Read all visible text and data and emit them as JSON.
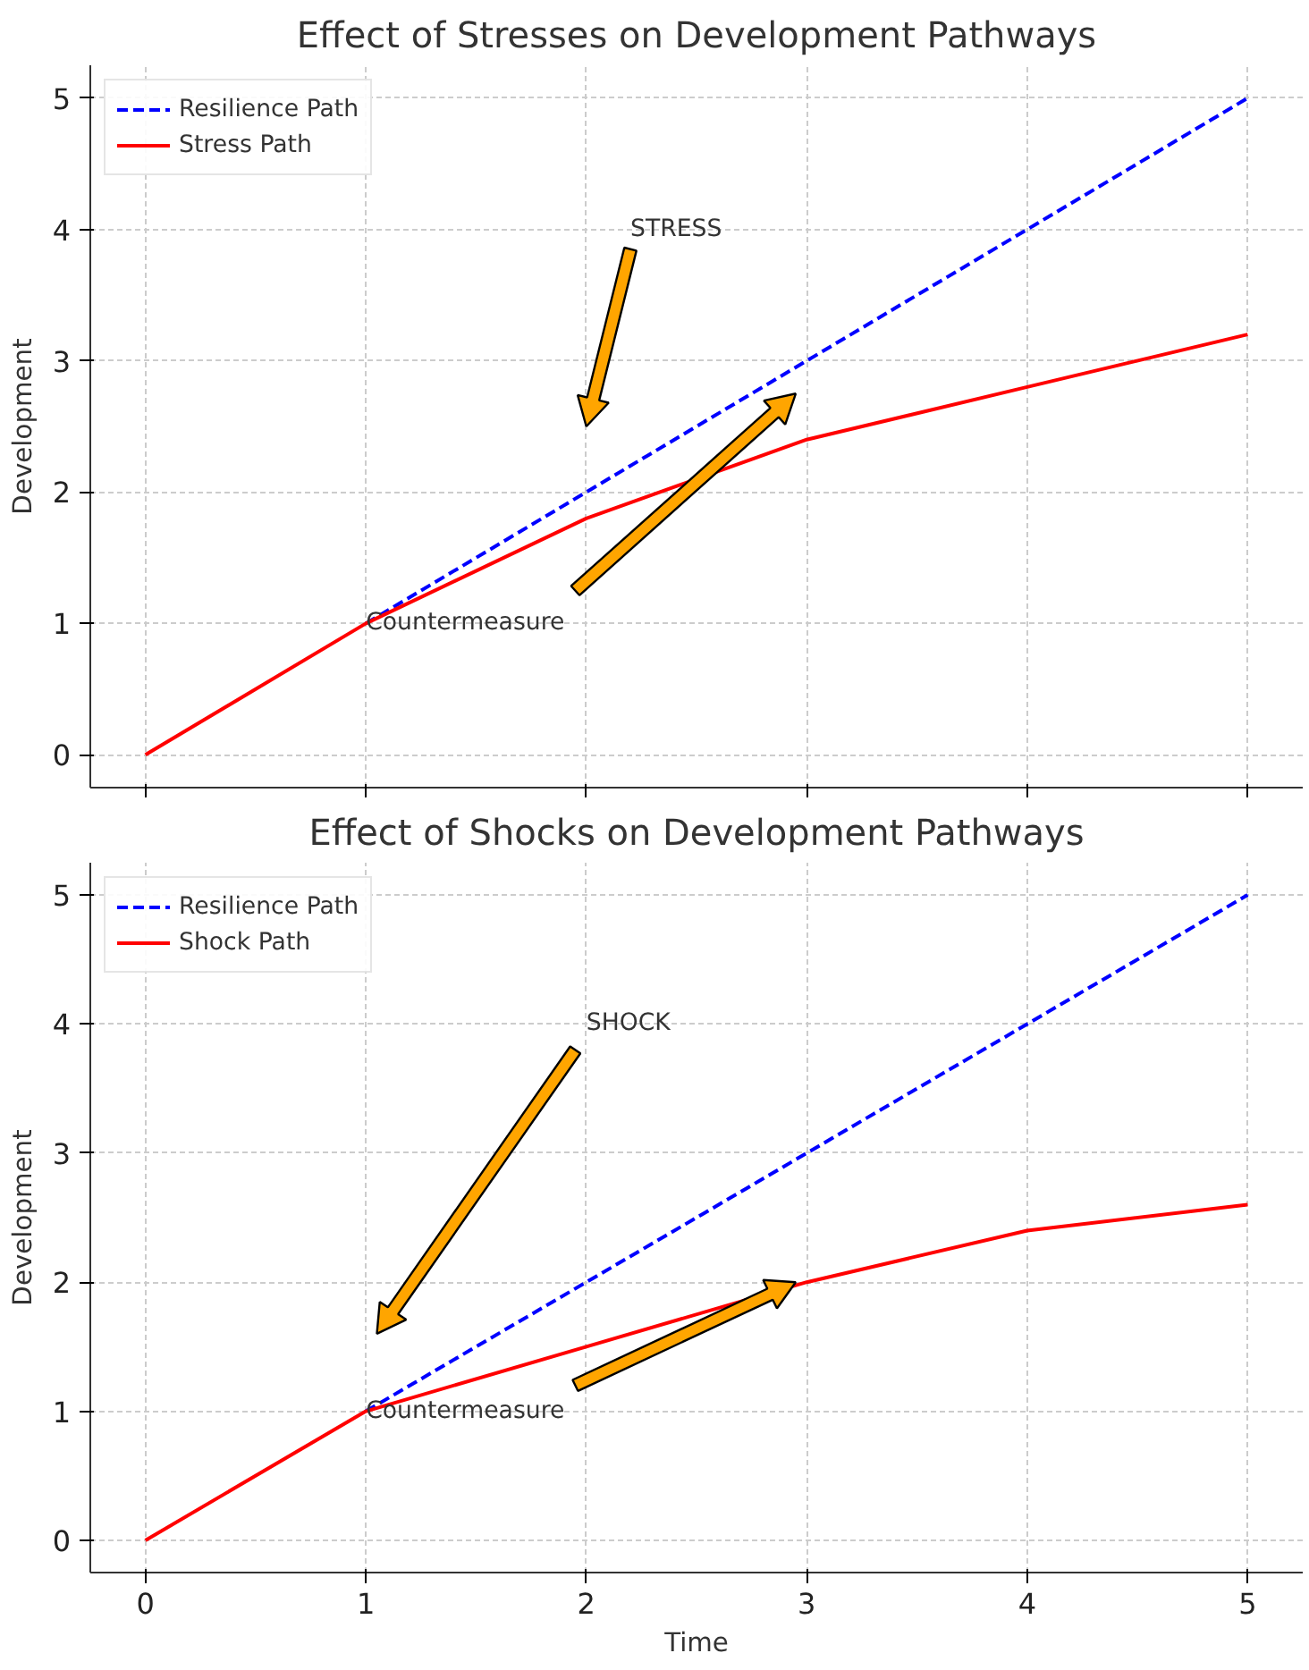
{
  "chart_data": [
    {
      "type": "line",
      "title": "Effect of Stresses on Development Pathways",
      "ylabel": "Development",
      "x": [
        0,
        1,
        2,
        3,
        4,
        5
      ],
      "xlim": [
        -0.25,
        5.25
      ],
      "ylim": [
        -0.25,
        5.25
      ],
      "xticks": [
        0,
        1,
        2,
        3,
        4,
        5
      ],
      "yticks": [
        0,
        1,
        2,
        3,
        4,
        5
      ],
      "tick_labels": "y",
      "grid": true,
      "legend": "top left",
      "series": [
        {
          "name": "Resilience Path",
          "color": "#0000ff",
          "line_style": "dashed",
          "values": [
            null,
            1,
            2,
            3,
            4,
            5
          ]
        },
        {
          "name": "Stress Path",
          "color": "#ff0000",
          "line_style": "solid",
          "values": [
            0,
            1,
            1.8,
            2.4,
            2.8,
            3.2
          ]
        }
      ],
      "annotations": [
        "STRESS",
        {
          "text": "Countermeasure",
          "x": 1,
          "y": 1
        }
      ]
    },
    {
      "type": "line",
      "title": "Effect of Shocks on Development Pathways",
      "xlabel": "Time",
      "ylabel": "Development",
      "x": [
        0,
        1,
        2,
        3,
        4,
        5
      ],
      "xlim": [
        -0.25,
        5.25
      ],
      "ylim": [
        -0.25,
        5.25
      ],
      "xticks": [
        0,
        1,
        2,
        3,
        4,
        5
      ],
      "yticks": [
        0,
        1,
        2,
        3,
        4,
        5
      ],
      "grid": true,
      "legend": "top left",
      "series": [
        {
          "name": "Resilience Path",
          "color": "#0000ff",
          "line_style": "dashed",
          "values": [
            null,
            1,
            2,
            3,
            4,
            5
          ]
        },
        {
          "name": "Shock Path",
          "color": "#ff0000",
          "line_style": "solid",
          "values": [
            0,
            1,
            1.5,
            2,
            2.4,
            2.6
          ]
        }
      ],
      "annotations": [
        "SHOCK",
        {
          "text": "Countermeasure",
          "x": 1,
          "y": 1
        }
      ]
    }
  ]
}
